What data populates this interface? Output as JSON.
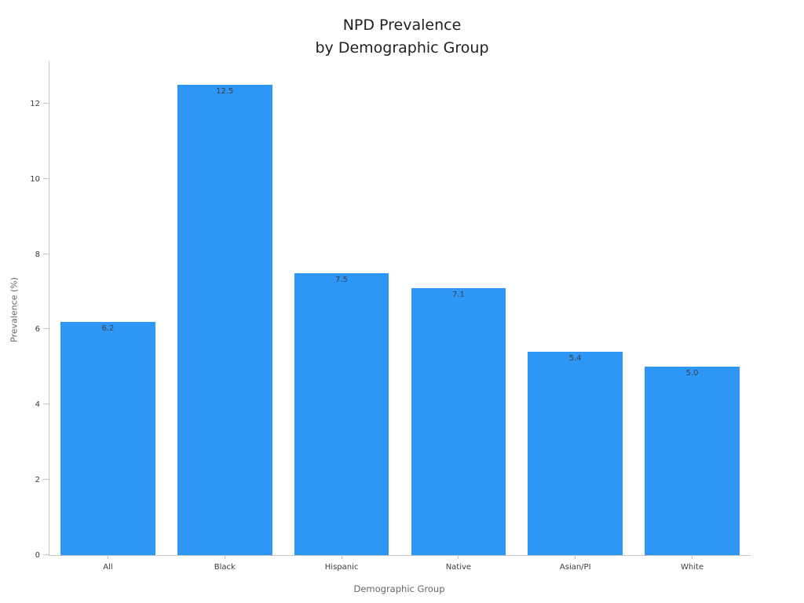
{
  "figure": {
    "background": "#ffffff"
  },
  "chart_data": {
    "type": "bar",
    "title": "NPD Prevalence\nby Demographic Group",
    "xlabel": "Demographic Group",
    "ylabel": "Prevalence (%)",
    "categories": [
      "All",
      "Black",
      "Hispanic",
      "Native",
      "Asian/PI",
      "White"
    ],
    "values": [
      6.2,
      12.5,
      7.5,
      7.1,
      5.4,
      5.0
    ],
    "value_labels": [
      "6.2",
      "12.5",
      "7.5",
      "7.1",
      "5.4",
      "5.0"
    ],
    "ylim": [
      0,
      13.125
    ],
    "yticks": [
      0,
      2,
      4,
      6,
      8,
      10,
      12
    ],
    "grid": false,
    "legend": null,
    "bar_color": "#2e96f5",
    "value_label_color": "#3b4148",
    "axis_color": "#c6c6c6",
    "tick_label_color": "#3c3c3c"
  }
}
